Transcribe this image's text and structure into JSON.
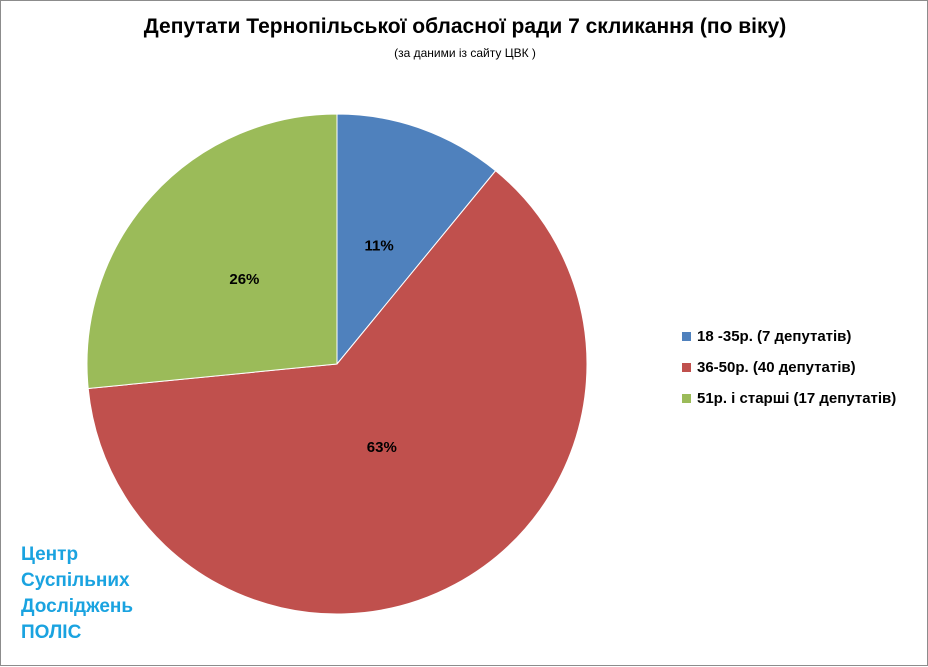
{
  "chart_data": {
    "type": "pie",
    "title": "Депутати Тернопільської обласної ради 7 скликання (по віку)",
    "subtitle": "(за даними із сайту ЦВК )",
    "slices": [
      {
        "label": "18 -35р. (7 депутатів)",
        "value": 7,
        "percent_label": "11%",
        "color": "#4f81bd"
      },
      {
        "label": "36-50р. (40 депутатів)",
        "value": 40,
        "percent_label": "63%",
        "color": "#c0504d"
      },
      {
        "label": "51р. і старші  (17 депутатів)",
        "value": 17,
        "percent_label": "26%",
        "color": "#9bbb59"
      }
    ],
    "legend_position": "right"
  },
  "watermark": {
    "lines": [
      "Центр",
      "Суспільних",
      "Досліджень",
      "ПОЛІС"
    ],
    "color": "#1aa3e0"
  }
}
